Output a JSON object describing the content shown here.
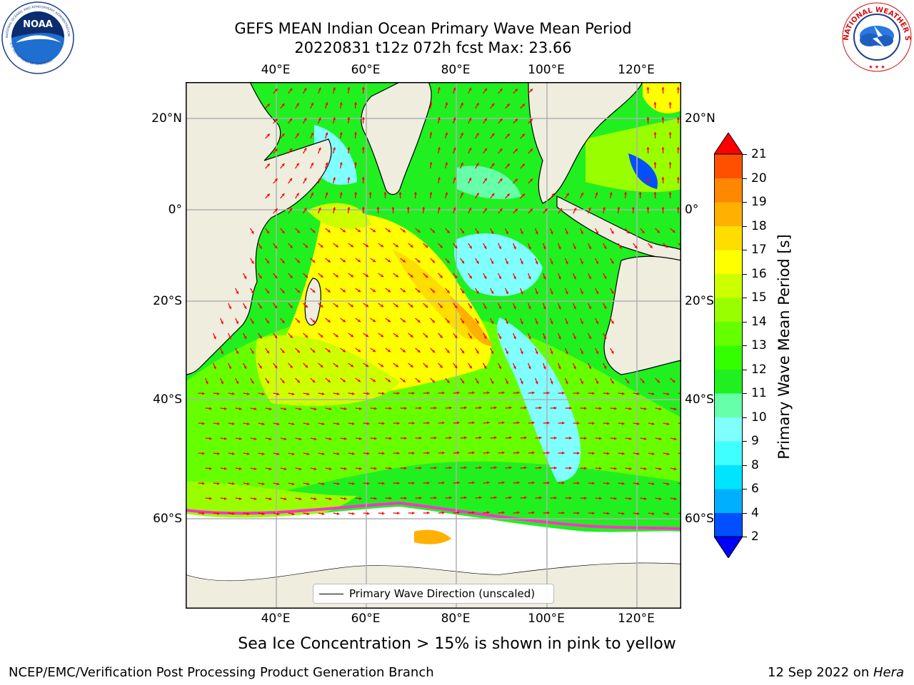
{
  "header": {
    "title_line1": "GEFS MEAN Indian Ocean Primary Wave Mean Period",
    "title_line2": "20220831 t12z 072h fcst   Max: 23.66"
  },
  "logos": {
    "left": {
      "icon": "noaa-logo",
      "text": "NOAA",
      "ring_text": "NATIONAL OCEANIC AND ATMOSPHERIC ADMINISTRATION · U.S. DEPARTMENT OF COMMERCE"
    },
    "right": {
      "icon": "nws-logo",
      "ring_text": "NATIONAL WEATHER SERVICE"
    }
  },
  "map": {
    "lon_labels": [
      "40°E",
      "60°E",
      "80°E",
      "100°E",
      "120°E"
    ],
    "lat_labels": [
      "20°N",
      "0°",
      "20°S",
      "40°S",
      "60°S"
    ],
    "legend": "Primary Wave Direction (unscaled)",
    "colors": {
      "land": "#efedde",
      "sea_ice": "#ffffff",
      "vector": "#ff0000"
    }
  },
  "colorbar": {
    "label": "Primary Wave Mean Period [s]",
    "ticks": [
      "2",
      "4",
      "6",
      "8",
      "9",
      "10",
      "11",
      "12",
      "13",
      "14",
      "15",
      "16",
      "17",
      "18",
      "19",
      "20",
      "21"
    ],
    "colors": [
      "#0000ff",
      "#0050ff",
      "#00b0ff",
      "#00e5ff",
      "#40ffff",
      "#80ffff",
      "#66ffaa",
      "#20f020",
      "#33ff00",
      "#66ff00",
      "#99ff00",
      "#ccff00",
      "#ffff00",
      "#ffdd00",
      "#ffb000",
      "#ff8800",
      "#ff5000",
      "#ff2000",
      "#ff0000"
    ]
  },
  "note": "Sea Ice Concentration > 15% is shown in pink to yellow",
  "footer": {
    "left": "NCEP/EMC/Verification Post Processing Product Generation Branch",
    "right_date": "12 Sep 2022 on ",
    "right_machine": "Hera"
  }
}
